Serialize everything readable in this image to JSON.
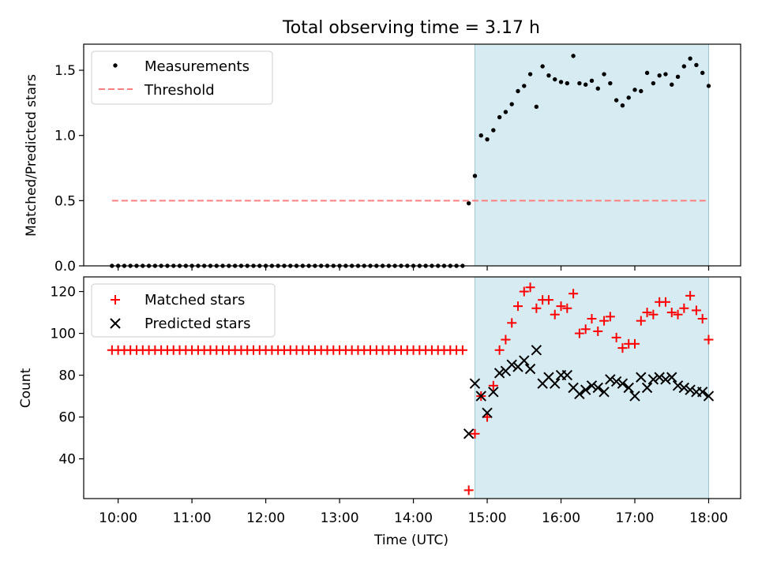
{
  "title": "Total observing time = 3.17 h",
  "chart_data": [
    {
      "type": "scatter",
      "ylabel": "Matched/Predicted stars",
      "xlabel": "",
      "xlim": [
        "09:32",
        "18:26"
      ],
      "ylim": [
        0,
        1.7
      ],
      "yticks": [
        "0.0",
        "0.5",
        "1.0",
        "1.5"
      ],
      "shaded_interval": [
        "14:50",
        "18:00"
      ],
      "shade_color": "#add8e6",
      "legend": {
        "location": "upper-left",
        "entries": [
          "Measurements",
          "Threshold"
        ]
      },
      "series": [
        {
          "name": "Measurements",
          "color": "#000000",
          "marker": "dot",
          "x": [
            "09:55",
            "10:00",
            "10:05",
            "10:10",
            "10:15",
            "10:20",
            "10:25",
            "10:30",
            "10:35",
            "10:40",
            "10:45",
            "10:50",
            "10:55",
            "11:00",
            "11:05",
            "11:10",
            "11:15",
            "11:20",
            "11:25",
            "11:30",
            "11:35",
            "11:40",
            "11:45",
            "11:50",
            "11:55",
            "12:00",
            "12:05",
            "12:10",
            "12:15",
            "12:20",
            "12:25",
            "12:30",
            "12:35",
            "12:40",
            "12:45",
            "12:50",
            "12:55",
            "13:00",
            "13:05",
            "13:10",
            "13:15",
            "13:20",
            "13:25",
            "13:30",
            "13:35",
            "13:40",
            "13:45",
            "13:50",
            "13:55",
            "14:00",
            "14:05",
            "14:10",
            "14:15",
            "14:20",
            "14:25",
            "14:30",
            "14:35",
            "14:40",
            "14:45",
            "14:50",
            "14:55",
            "15:00",
            "15:05",
            "15:10",
            "15:15",
            "15:20",
            "15:25",
            "15:30",
            "15:35",
            "15:40",
            "15:45",
            "15:50",
            "15:55",
            "16:00",
            "16:05",
            "16:10",
            "16:15",
            "16:20",
            "16:25",
            "16:30",
            "16:35",
            "16:40",
            "16:45",
            "16:50",
            "16:55",
            "17:00",
            "17:05",
            "17:10",
            "17:15",
            "17:20",
            "17:25",
            "17:30",
            "17:35",
            "17:40",
            "17:45",
            "17:50",
            "17:55",
            "18:00"
          ],
          "y": [
            0,
            0,
            0,
            0,
            0,
            0,
            0,
            0,
            0,
            0,
            0,
            0,
            0,
            0,
            0,
            0,
            0,
            0,
            0,
            0,
            0,
            0,
            0,
            0,
            0,
            0,
            0,
            0,
            0,
            0,
            0,
            0,
            0,
            0,
            0,
            0,
            0,
            0,
            0,
            0,
            0,
            0,
            0,
            0,
            0,
            0,
            0,
            0,
            0,
            0,
            0,
            0,
            0,
            0,
            0,
            0,
            0,
            0,
            0.48,
            0.69,
            1.0,
            0.97,
            1.04,
            1.14,
            1.18,
            1.24,
            1.34,
            1.38,
            1.47,
            1.22,
            1.53,
            1.46,
            1.43,
            1.41,
            1.4,
            1.61,
            1.4,
            1.39,
            1.42,
            1.36,
            1.47,
            1.4,
            1.27,
            1.23,
            1.29,
            1.35,
            1.34,
            1.48,
            1.4,
            1.46,
            1.47,
            1.39,
            1.45,
            1.53,
            1.59,
            1.54,
            1.48,
            1.38
          ]
        },
        {
          "name": "Threshold",
          "color": "#ff7f7f",
          "style": "dashed",
          "x": [
            "09:55",
            "18:00"
          ],
          "y": [
            0.5,
            0.5
          ]
        }
      ]
    },
    {
      "type": "scatter",
      "ylabel": "Count",
      "xlabel": "Time (UTC)",
      "xlim": [
        "09:32",
        "18:26"
      ],
      "ylim": [
        21,
        127
      ],
      "yticks": [
        "40",
        "60",
        "80",
        "100",
        "120"
      ],
      "xticks": [
        "10:00",
        "11:00",
        "12:00",
        "13:00",
        "14:00",
        "15:00",
        "16:00",
        "17:00",
        "18:00"
      ],
      "shaded_interval": [
        "14:50",
        "18:00"
      ],
      "shade_color": "#add8e6",
      "legend": {
        "location": "upper-left",
        "entries": [
          "Matched stars",
          "Predicted stars"
        ]
      },
      "series": [
        {
          "name": "Matched stars",
          "color": "#ff0000",
          "marker": "plus",
          "x": [
            "09:55",
            "10:00",
            "10:05",
            "10:10",
            "10:15",
            "10:20",
            "10:25",
            "10:30",
            "10:35",
            "10:40",
            "10:45",
            "10:50",
            "10:55",
            "11:00",
            "11:05",
            "11:10",
            "11:15",
            "11:20",
            "11:25",
            "11:30",
            "11:35",
            "11:40",
            "11:45",
            "11:50",
            "11:55",
            "12:00",
            "12:05",
            "12:10",
            "12:15",
            "12:20",
            "12:25",
            "12:30",
            "12:35",
            "12:40",
            "12:45",
            "12:50",
            "12:55",
            "13:00",
            "13:05",
            "13:10",
            "13:15",
            "13:20",
            "13:25",
            "13:30",
            "13:35",
            "13:40",
            "13:45",
            "13:50",
            "13:55",
            "14:00",
            "14:05",
            "14:10",
            "14:15",
            "14:20",
            "14:25",
            "14:30",
            "14:35",
            "14:40",
            "14:45",
            "14:50",
            "14:55",
            "15:00",
            "15:05",
            "15:10",
            "15:15",
            "15:20",
            "15:25",
            "15:30",
            "15:35",
            "15:40",
            "15:45",
            "15:50",
            "15:55",
            "16:00",
            "16:05",
            "16:10",
            "16:15",
            "16:20",
            "16:25",
            "16:30",
            "16:35",
            "16:40",
            "16:45",
            "16:50",
            "16:55",
            "17:00",
            "17:05",
            "17:10",
            "17:15",
            "17:20",
            "17:25",
            "17:30",
            "17:35",
            "17:40",
            "17:45",
            "17:50",
            "17:55",
            "18:00"
          ],
          "y": [
            92,
            92,
            92,
            92,
            92,
            92,
            92,
            92,
            92,
            92,
            92,
            92,
            92,
            92,
            92,
            92,
            92,
            92,
            92,
            92,
            92,
            92,
            92,
            92,
            92,
            92,
            92,
            92,
            92,
            92,
            92,
            92,
            92,
            92,
            92,
            92,
            92,
            92,
            92,
            92,
            92,
            92,
            92,
            92,
            92,
            92,
            92,
            92,
            92,
            92,
            92,
            92,
            92,
            92,
            92,
            92,
            92,
            92,
            25,
            52,
            70,
            60,
            75,
            92,
            97,
            105,
            113,
            120,
            122,
            112,
            116,
            116,
            109,
            113,
            112,
            119,
            100,
            102,
            107,
            101,
            106,
            108,
            98,
            93,
            95,
            95,
            106,
            110,
            109,
            115,
            115,
            110,
            109,
            112,
            118,
            111,
            107,
            97
          ]
        },
        {
          "name": "Predicted stars",
          "color": "#000000",
          "marker": "x",
          "x": [
            "14:45",
            "14:50",
            "14:55",
            "15:00",
            "15:05",
            "15:10",
            "15:15",
            "15:20",
            "15:25",
            "15:30",
            "15:35",
            "15:40",
            "15:45",
            "15:50",
            "15:55",
            "16:00",
            "16:05",
            "16:10",
            "16:15",
            "16:20",
            "16:25",
            "16:30",
            "16:35",
            "16:40",
            "16:45",
            "16:50",
            "16:55",
            "17:00",
            "17:05",
            "17:10",
            "17:15",
            "17:20",
            "17:25",
            "17:30",
            "17:35",
            "17:40",
            "17:45",
            "17:50",
            "17:55",
            "18:00"
          ],
          "y": [
            52,
            76,
            70,
            62,
            72,
            81,
            82,
            85,
            84,
            87,
            83,
            92,
            76,
            79,
            76,
            80,
            80,
            74,
            71,
            73,
            75,
            74,
            72,
            78,
            77,
            76,
            74,
            70,
            79,
            74,
            78,
            79,
            78,
            79,
            75,
            74,
            73,
            72,
            72,
            70
          ]
        }
      ]
    }
  ]
}
